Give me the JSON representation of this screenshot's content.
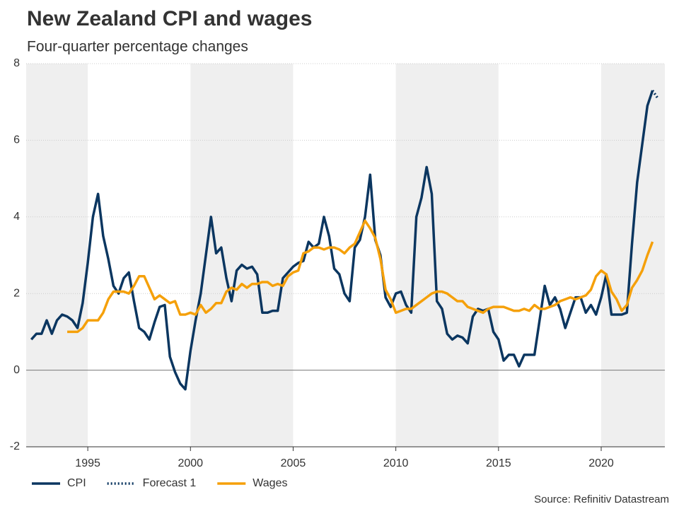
{
  "chart_data": {
    "type": "line",
    "title": "New Zealand CPI and wages",
    "subtitle": "Four-quarter percentage changes",
    "source": "Source: Refinitiv Datastream",
    "xlim": [
      1992,
      2023.1
    ],
    "xticks": [
      1995,
      2000,
      2005,
      2010,
      2015,
      2020
    ],
    "ylim": [
      -2,
      8
    ],
    "yticks": [
      -2,
      0,
      2,
      4,
      6,
      8
    ],
    "grid": true,
    "legend": "bottom",
    "series": [
      {
        "name": "CPI",
        "color": "#0b3660",
        "style": "solid",
        "x": [
          1992.25,
          1992.5,
          1992.75,
          1993,
          1993.25,
          1993.5,
          1993.75,
          1994,
          1994.25,
          1994.5,
          1994.75,
          1995,
          1995.25,
          1995.5,
          1995.75,
          1996,
          1996.25,
          1996.5,
          1996.75,
          1997,
          1997.25,
          1997.5,
          1997.75,
          1998,
          1998.25,
          1998.5,
          1998.75,
          1999,
          1999.25,
          1999.5,
          1999.75,
          2000,
          2000.25,
          2000.5,
          2000.75,
          2001,
          2001.25,
          2001.5,
          2001.75,
          2002,
          2002.25,
          2002.5,
          2002.75,
          2003,
          2003.25,
          2003.5,
          2003.75,
          2004,
          2004.25,
          2004.5,
          2004.75,
          2005,
          2005.25,
          2005.5,
          2005.75,
          2006,
          2006.25,
          2006.5,
          2006.75,
          2007,
          2007.25,
          2007.5,
          2007.75,
          2008,
          2008.25,
          2008.5,
          2008.75,
          2009,
          2009.25,
          2009.5,
          2009.75,
          2010,
          2010.25,
          2010.5,
          2010.75,
          2011,
          2011.25,
          2011.5,
          2011.75,
          2012,
          2012.25,
          2012.5,
          2012.75,
          2013,
          2013.25,
          2013.5,
          2013.75,
          2014,
          2014.25,
          2014.5,
          2014.75,
          2015,
          2015.25,
          2015.5,
          2015.75,
          2016,
          2016.25,
          2016.5,
          2016.75,
          2017,
          2017.25,
          2017.5,
          2017.75,
          2018,
          2018.25,
          2018.5,
          2018.75,
          2019,
          2019.25,
          2019.5,
          2019.75,
          2020,
          2020.25,
          2020.5,
          2020.75,
          2021,
          2021.25,
          2021.5,
          2021.75,
          2022,
          2022.25,
          2022.5
        ],
        "values": [
          0.8,
          0.95,
          0.95,
          1.3,
          0.95,
          1.3,
          1.45,
          1.4,
          1.3,
          1.1,
          1.75,
          2.8,
          4.0,
          4.6,
          3.5,
          2.9,
          2.2,
          2.0,
          2.4,
          2.55,
          1.8,
          1.1,
          1.0,
          0.8,
          1.25,
          1.65,
          1.7,
          0.35,
          -0.05,
          -0.35,
          -0.5,
          0.5,
          1.3,
          2.0,
          3.0,
          4.0,
          3.05,
          3.2,
          2.4,
          1.8,
          2.6,
          2.75,
          2.65,
          2.7,
          2.5,
          1.5,
          1.5,
          1.55,
          1.55,
          2.4,
          2.55,
          2.7,
          2.8,
          2.85,
          3.35,
          3.2,
          3.3,
          4.0,
          3.5,
          2.65,
          2.5,
          2.0,
          1.8,
          3.2,
          3.4,
          4.0,
          5.1,
          3.4,
          3.0,
          1.9,
          1.65,
          2.0,
          2.05,
          1.7,
          1.5,
          4.0,
          4.5,
          5.3,
          4.6,
          1.8,
          1.6,
          0.95,
          0.8,
          0.9,
          0.85,
          0.7,
          1.4,
          1.6,
          1.55,
          1.6,
          1.0,
          0.8,
          0.25,
          0.4,
          0.4,
          0.1,
          0.4,
          0.4,
          0.4,
          1.3,
          2.2,
          1.7,
          1.9,
          1.6,
          1.1,
          1.5,
          1.9,
          1.9,
          1.5,
          1.7,
          1.45,
          1.9,
          2.5,
          1.45,
          1.45,
          1.45,
          1.5,
          3.3,
          4.9,
          5.9,
          6.9,
          7.3
        ]
      },
      {
        "name": "Forecast 1",
        "color": "#0b3660",
        "style": "dotted",
        "x": [
          2022.5,
          2022.75
        ],
        "values": [
          7.3,
          7.1
        ]
      },
      {
        "name": "Wages",
        "color": "#f5a00a",
        "style": "solid",
        "x": [
          1994,
          1994.25,
          1994.5,
          1994.75,
          1995,
          1995.25,
          1995.5,
          1995.75,
          1996,
          1996.25,
          1996.5,
          1996.75,
          1997,
          1997.25,
          1997.5,
          1997.75,
          1998,
          1998.25,
          1998.5,
          1998.75,
          1999,
          1999.25,
          1999.5,
          1999.75,
          2000,
          2000.25,
          2000.5,
          2000.75,
          2001,
          2001.25,
          2001.5,
          2001.75,
          2002,
          2002.25,
          2002.5,
          2002.75,
          2003,
          2003.25,
          2003.5,
          2003.75,
          2004,
          2004.25,
          2004.5,
          2004.75,
          2005,
          2005.25,
          2005.5,
          2005.75,
          2006,
          2006.25,
          2006.5,
          2006.75,
          2007,
          2007.25,
          2007.5,
          2007.75,
          2008,
          2008.25,
          2008.5,
          2008.75,
          2009,
          2009.25,
          2009.5,
          2009.75,
          2010,
          2010.25,
          2010.5,
          2010.75,
          2011,
          2011.25,
          2011.5,
          2011.75,
          2012,
          2012.25,
          2012.5,
          2012.75,
          2013,
          2013.25,
          2013.5,
          2013.75,
          2014,
          2014.25,
          2014.5,
          2014.75,
          2015,
          2015.25,
          2015.5,
          2015.75,
          2016,
          2016.25,
          2016.5,
          2016.75,
          2017,
          2017.25,
          2017.5,
          2017.75,
          2018,
          2018.25,
          2018.5,
          2018.75,
          2019,
          2019.25,
          2019.5,
          2019.75,
          2020,
          2020.25,
          2020.5,
          2020.75,
          2021,
          2021.25,
          2021.5,
          2021.75,
          2022,
          2022.25,
          2022.5
        ],
        "values": [
          1.0,
          1.0,
          1.0,
          1.1,
          1.3,
          1.3,
          1.3,
          1.5,
          1.85,
          2.05,
          2.05,
          2.05,
          2.0,
          2.2,
          2.45,
          2.45,
          2.15,
          1.85,
          1.95,
          1.85,
          1.75,
          1.8,
          1.45,
          1.45,
          1.5,
          1.45,
          1.7,
          1.5,
          1.6,
          1.75,
          1.75,
          2.05,
          2.15,
          2.1,
          2.25,
          2.15,
          2.25,
          2.25,
          2.3,
          2.3,
          2.2,
          2.25,
          2.2,
          2.45,
          2.55,
          2.6,
          3.05,
          3.1,
          3.2,
          3.2,
          3.15,
          3.2,
          3.2,
          3.15,
          3.05,
          3.2,
          3.3,
          3.6,
          3.9,
          3.7,
          3.45,
          2.9,
          2.1,
          1.85,
          1.5,
          1.55,
          1.6,
          1.6,
          1.7,
          1.8,
          1.9,
          2.0,
          2.05,
          2.05,
          2.0,
          1.9,
          1.8,
          1.8,
          1.65,
          1.6,
          1.55,
          1.5,
          1.6,
          1.65,
          1.65,
          1.65,
          1.6,
          1.55,
          1.55,
          1.6,
          1.55,
          1.7,
          1.6,
          1.6,
          1.65,
          1.7,
          1.8,
          1.85,
          1.9,
          1.85,
          1.9,
          1.95,
          2.1,
          2.45,
          2.6,
          2.5,
          2.05,
          1.85,
          1.55,
          1.7,
          2.15,
          2.35,
          2.6,
          3.0,
          3.35
        ]
      }
    ]
  }
}
